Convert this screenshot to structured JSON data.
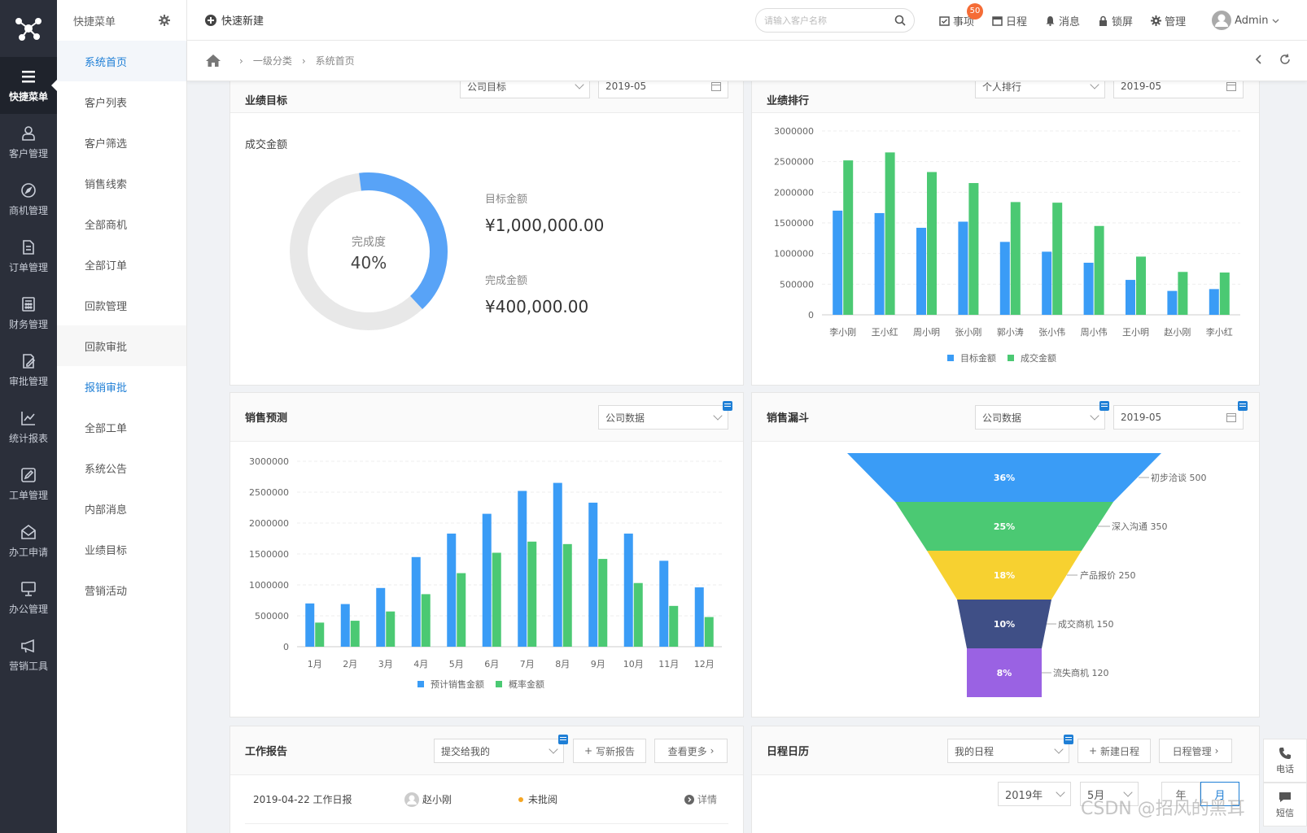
{
  "rail": {
    "items": [
      {
        "label": "快捷菜单",
        "icon": "menu-icon"
      },
      {
        "label": "客户管理",
        "icon": "customer-icon"
      },
      {
        "label": "商机管理",
        "icon": "compass-icon"
      },
      {
        "label": "订单管理",
        "icon": "order-icon"
      },
      {
        "label": "财务管理",
        "icon": "calculator-icon"
      },
      {
        "label": "审批管理",
        "icon": "approve-icon"
      },
      {
        "label": "统计报表",
        "icon": "chart-icon"
      },
      {
        "label": "工单管理",
        "icon": "edit-icon"
      },
      {
        "label": "办工申请",
        "icon": "apply-icon"
      },
      {
        "label": "办公管理",
        "icon": "monitor-icon"
      },
      {
        "label": "营销工具",
        "icon": "megaphone-icon"
      }
    ]
  },
  "submenu": {
    "title": "快捷菜单",
    "items": [
      "系统首页",
      "客户列表",
      "客户筛选",
      "销售线索",
      "全部商机",
      "全部订单",
      "回款管理",
      "回款审批",
      "报销审批",
      "全部工单",
      "系统公告",
      "内部消息",
      "业绩目标",
      "营销活动"
    ]
  },
  "topbar": {
    "quick_new": "快速新建",
    "search_placeholder": "请输入客户名称",
    "todo": "事项",
    "todo_count": "50",
    "schedule": "日程",
    "message": "消息",
    "lock": "锁屏",
    "manage": "管理",
    "user": "Admin"
  },
  "breadcrumb": {
    "level1": "一级分类",
    "level2": "系统首页"
  },
  "performance": {
    "title": "业绩目标",
    "scope": "公司目标",
    "date": "2019-05",
    "subtitle": "成交金额",
    "center_label": "完成度",
    "percent_text": "40%",
    "percent": 0.4,
    "target_label": "目标金额",
    "target_value": "¥1,000,000.00",
    "done_label": "完成金额",
    "done_value": "¥400,000.00",
    "colors": {
      "done": "#58a3f7",
      "rest": "#e8e8e8"
    }
  },
  "ranking": {
    "title": "业绩排行",
    "scope": "个人排行",
    "date": "2019-05"
  },
  "forecast": {
    "title": "销售预测",
    "scope": "公司数据"
  },
  "funnel": {
    "title": "销售漏斗",
    "scope": "公司数据",
    "date": "2019-05",
    "stages": [
      {
        "pct": "36%",
        "label": "初步洽谈 500",
        "color": "#3a9cf6"
      },
      {
        "pct": "25%",
        "label": "深入沟通 350",
        "color": "#4bc973"
      },
      {
        "pct": "18%",
        "label": "产品报价 250",
        "color": "#f7d130"
      },
      {
        "pct": "10%",
        "label": "成交商机 150",
        "color": "#3f4f86"
      },
      {
        "pct": "8%",
        "label": "流失商机 120",
        "color": "#9a62e3"
      }
    ]
  },
  "report": {
    "title": "工作报告",
    "scope": "提交给我的",
    "write": "写新报告",
    "more": "查看更多",
    "row": {
      "title": "2019-04-22 工作日报",
      "user": "赵小刚",
      "status": "未批阅",
      "detail": "详情"
    }
  },
  "calendar": {
    "title": "日程日历",
    "scope": "我的日程",
    "add": "新建日程",
    "manage": "日程管理",
    "year": "2019年",
    "month": "5月",
    "view_year": "年",
    "view_month": "月"
  },
  "float": {
    "phone": "电话",
    "sms": "短信"
  },
  "watermark": "CSDN @招风的黑耳",
  "chart_data": [
    {
      "type": "bar",
      "categories": [
        "李小刚",
        "王小红",
        "周小明",
        "张小刚",
        "郭小涛",
        "张小伟",
        "周小伟",
        "王小明",
        "赵小刚",
        "李小红"
      ],
      "series": [
        {
          "name": "目标金额",
          "color": "#3a9cf6",
          "values": [
            1700000,
            1660000,
            1420000,
            1520000,
            1190000,
            1030000,
            850000,
            570000,
            390000,
            420000
          ]
        },
        {
          "name": "成交金额",
          "color": "#4bc973",
          "values": [
            2520000,
            2650000,
            2330000,
            2150000,
            1840000,
            1830000,
            1450000,
            950000,
            700000,
            690000
          ]
        }
      ],
      "ylim": [
        0,
        3000000
      ],
      "yticks": [
        "3000000",
        "2500000",
        "2000000",
        "1500000",
        "1000000",
        "500000",
        "0"
      ]
    },
    {
      "type": "bar",
      "categories": [
        "1月",
        "2月",
        "3月",
        "4月",
        "5月",
        "6月",
        "7月",
        "8月",
        "9月",
        "10月",
        "11月",
        "12月"
      ],
      "series": [
        {
          "name": "预计销售金额",
          "color": "#3a9cf6",
          "values": [
            700000,
            690000,
            950000,
            1450000,
            1830000,
            2150000,
            2520000,
            2650000,
            2330000,
            1830000,
            1390000,
            960000
          ]
        },
        {
          "name": "概率金额",
          "color": "#4bc973",
          "values": [
            390000,
            420000,
            570000,
            850000,
            1190000,
            1520000,
            1700000,
            1660000,
            1420000,
            1030000,
            660000,
            480000
          ]
        }
      ],
      "ylim": [
        0,
        3000000
      ],
      "yticks": [
        "3000000",
        "2500000",
        "2000000",
        "1500000",
        "1000000",
        "500000",
        "0"
      ]
    }
  ]
}
